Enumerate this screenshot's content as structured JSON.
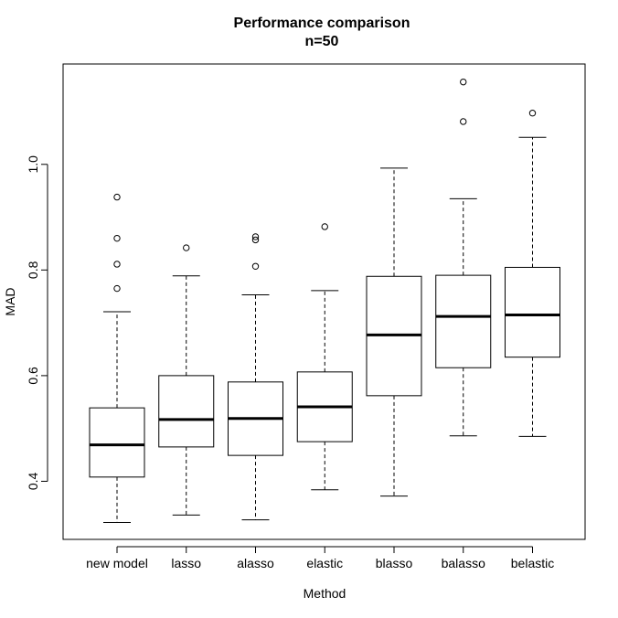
{
  "chart_data": {
    "type": "boxplot",
    "title": "Performance comparison",
    "subtitle": "n=50",
    "xlabel": "Method",
    "ylabel": "MAD",
    "ylim": [
      0.29,
      1.19
    ],
    "yticks": [
      "0.4",
      "0.6",
      "0.8",
      "1.0"
    ],
    "ytick_values": [
      0.4,
      0.6,
      0.8,
      1.0
    ],
    "grid": false,
    "categories": [
      "new model",
      "lasso",
      "alasso",
      "elastic",
      "blasso",
      "balasso",
      "belastic"
    ],
    "boxes": [
      {
        "whisker_low": 0.322,
        "q1": 0.408,
        "median": 0.469,
        "q3": 0.539,
        "whisker_high": 0.721,
        "outliers": [
          0.765,
          0.811,
          0.86,
          0.938
        ]
      },
      {
        "whisker_low": 0.336,
        "q1": 0.465,
        "median": 0.517,
        "q3": 0.6,
        "whisker_high": 0.789,
        "outliers": [
          0.842
        ]
      },
      {
        "whisker_low": 0.327,
        "q1": 0.449,
        "median": 0.519,
        "q3": 0.588,
        "whisker_high": 0.753,
        "outliers": [
          0.807,
          0.857,
          0.863
        ]
      },
      {
        "whisker_low": 0.384,
        "q1": 0.475,
        "median": 0.541,
        "q3": 0.607,
        "whisker_high": 0.761,
        "outliers": [
          0.882
        ]
      },
      {
        "whisker_low": 0.372,
        "q1": 0.562,
        "median": 0.677,
        "q3": 0.788,
        "whisker_high": 0.993,
        "outliers": []
      },
      {
        "whisker_low": 0.486,
        "q1": 0.615,
        "median": 0.712,
        "q3": 0.79,
        "whisker_high": 0.935,
        "outliers": [
          1.081,
          1.156
        ]
      },
      {
        "whisker_low": 0.485,
        "q1": 0.635,
        "median": 0.715,
        "q3": 0.805,
        "whisker_high": 1.051,
        "outliers": [
          1.097
        ]
      }
    ]
  }
}
